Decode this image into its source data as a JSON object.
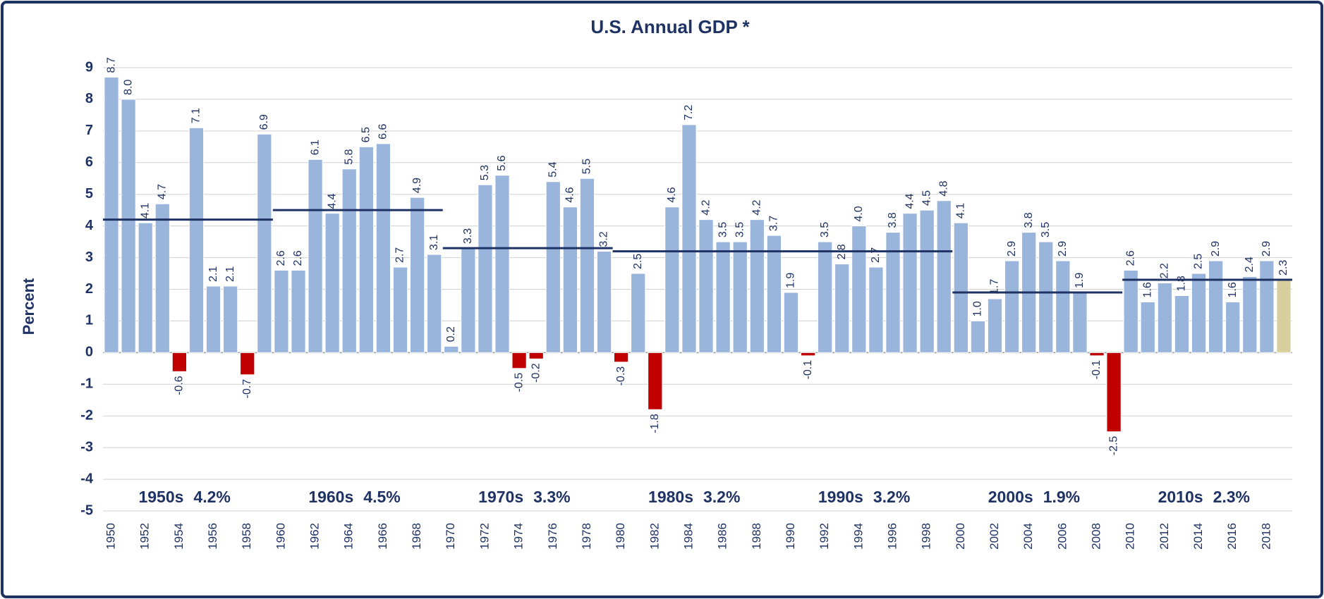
{
  "chart_data": {
    "type": "bar",
    "title": "U.S.  Annual GDP *",
    "y_label": "Percent",
    "categories": [
      "1950",
      null,
      "1952",
      null,
      "1954",
      null,
      "1956",
      null,
      "1958",
      null,
      "1960",
      null,
      "1962",
      null,
      "1964",
      null,
      "1966",
      null,
      "1968",
      null,
      "1970",
      null,
      "1972",
      null,
      "1974",
      null,
      "1976",
      null,
      "1978",
      null,
      "1980",
      null,
      "1982",
      null,
      "1984",
      null,
      "1986",
      null,
      "1988",
      null,
      "1990",
      null,
      "1992",
      null,
      "1994",
      null,
      "1996",
      null,
      "1998",
      null,
      "2000",
      null,
      "2002",
      null,
      "2004",
      null,
      "2006",
      null,
      "2008",
      null,
      "2010",
      null,
      "2012",
      null,
      "2014",
      null,
      "2016",
      null,
      "2018",
      null
    ],
    "values": [
      8.7,
      8.0,
      4.1,
      4.7,
      -0.6,
      7.1,
      2.1,
      2.1,
      -0.7,
      6.9,
      2.6,
      2.6,
      6.1,
      4.4,
      5.8,
      6.5,
      6.6,
      2.7,
      4.9,
      3.1,
      0.2,
      3.3,
      5.3,
      5.6,
      -0.5,
      -0.2,
      5.4,
      4.6,
      5.5,
      3.2,
      -0.3,
      2.5,
      -1.8,
      4.6,
      7.2,
      4.2,
      3.5,
      3.5,
      4.2,
      3.7,
      1.9,
      -0.1,
      3.5,
      2.8,
      4.0,
      2.7,
      3.8,
      4.4,
      4.5,
      4.8,
      4.1,
      1.0,
      1.7,
      2.9,
      3.8,
      3.5,
      2.9,
      1.9,
      -0.1,
      -2.5,
      2.6,
      1.6,
      2.2,
      1.8,
      2.5,
      2.9,
      1.6,
      2.4,
      2.9,
      2.3
    ],
    "value_labels": [
      "8.7",
      "8.0",
      "4.1",
      "4.7",
      "-0.6",
      "7.1",
      "2.1",
      "2.1",
      "-0.7",
      "6.9",
      "2.6",
      "2.6",
      "6.1",
      "4.4",
      "5.8",
      "6.5",
      "6.6",
      "2.7",
      "4.9",
      "3.1",
      "0.2",
      "3.3",
      "5.3",
      "5.6",
      "-0.5",
      "-0.2",
      "5.4",
      "4.6",
      "5.5",
      "3.2",
      "-0.3",
      "2.5",
      "-1.8",
      "4.6",
      "7.2",
      "4.2",
      "3.5",
      "3.5",
      "4.2",
      "3.7",
      "1.9",
      "-0.1",
      "3.5",
      "2.8",
      "4.0",
      "2.7",
      "3.8",
      "4.4",
      "4.5",
      "4.8",
      "4.1",
      "1.0",
      "1.7",
      "2.9",
      "3.8",
      "3.5",
      "2.9",
      "1.9",
      "-0.1",
      "-2.5",
      "2.6",
      "1.6",
      "2.2",
      "1.8",
      "2.5",
      "2.9",
      "1.6",
      "2.4",
      "2.9",
      "2.3"
    ],
    "colors": [
      "#9ab5dc",
      "#9ab5dc",
      "#9ab5dc",
      "#9ab5dc",
      "#c00000",
      "#9ab5dc",
      "#9ab5dc",
      "#9ab5dc",
      "#c00000",
      "#9ab5dc",
      "#9ab5dc",
      "#9ab5dc",
      "#9ab5dc",
      "#9ab5dc",
      "#9ab5dc",
      "#9ab5dc",
      "#9ab5dc",
      "#9ab5dc",
      "#9ab5dc",
      "#9ab5dc",
      "#9ab5dc",
      "#9ab5dc",
      "#9ab5dc",
      "#9ab5dc",
      "#c00000",
      "#c00000",
      "#9ab5dc",
      "#9ab5dc",
      "#9ab5dc",
      "#9ab5dc",
      "#c00000",
      "#9ab5dc",
      "#c00000",
      "#9ab5dc",
      "#9ab5dc",
      "#9ab5dc",
      "#9ab5dc",
      "#9ab5dc",
      "#9ab5dc",
      "#9ab5dc",
      "#9ab5dc",
      "#c00000",
      "#9ab5dc",
      "#9ab5dc",
      "#9ab5dc",
      "#9ab5dc",
      "#9ab5dc",
      "#9ab5dc",
      "#9ab5dc",
      "#9ab5dc",
      "#9ab5dc",
      "#9ab5dc",
      "#9ab5dc",
      "#9ab5dc",
      "#9ab5dc",
      "#9ab5dc",
      "#9ab5dc",
      "#9ab5dc",
      "#c00000",
      "#c00000",
      "#9ab5dc",
      "#9ab5dc",
      "#9ab5dc",
      "#9ab5dc",
      "#9ab5dc",
      "#9ab5dc",
      "#9ab5dc",
      "#9ab5dc",
      "#9ab5dc",
      "#d8cf9e"
    ],
    "ylim": [
      -5,
      9
    ],
    "yticks": [
      -5,
      -4,
      -3,
      -2,
      -1,
      0,
      1,
      2,
      3,
      4,
      5,
      6,
      7,
      8,
      9
    ],
    "grid": true,
    "decade_averages": [
      {
        "label": "1950s",
        "value": 4.2,
        "value_label": "4.2%"
      },
      {
        "label": "1960s",
        "value": 4.5,
        "value_label": "4.5%"
      },
      {
        "label": "1970s",
        "value": 3.3,
        "value_label": "3.3%"
      },
      {
        "label": "1980s",
        "value": 3.2,
        "value_label": "3.2%"
      },
      {
        "label": "1990s",
        "value": 3.2,
        "value_label": "3.2%"
      },
      {
        "label": "2000s",
        "value": 1.9,
        "value_label": "1.9%"
      },
      {
        "label": "2010s",
        "value": 2.3,
        "value_label": "2.3%"
      }
    ],
    "average_line_color": "#1f3264"
  }
}
